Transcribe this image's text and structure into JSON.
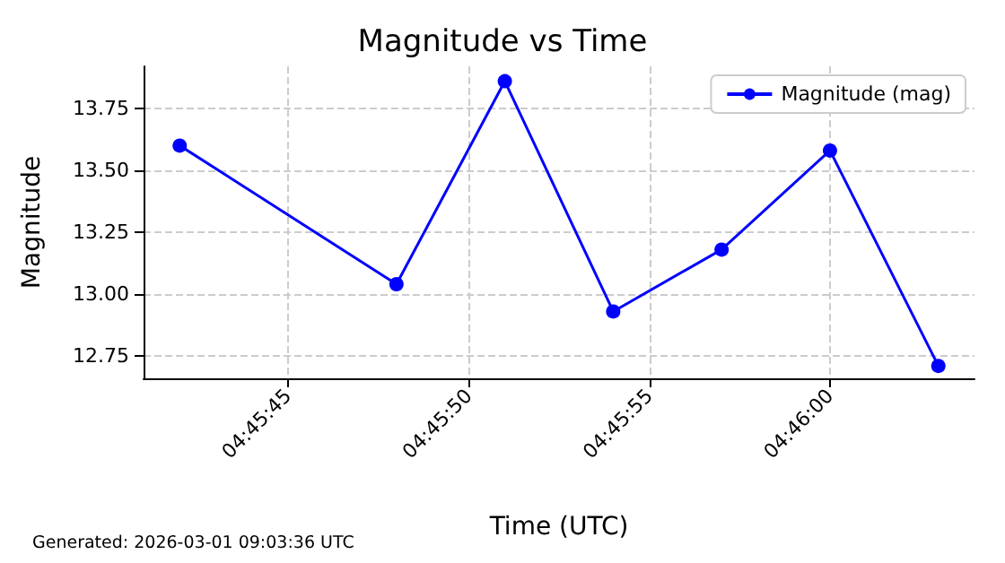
{
  "chart_data": {
    "type": "line",
    "title": "Magnitude vs Time",
    "xlabel": "Time (UTC)",
    "ylabel": "Magnitude",
    "x": [
      4.7616667,
      4.7633333,
      4.7641667,
      4.765,
      4.7658333,
      4.7666667,
      4.7675
    ],
    "series": [
      {
        "name": "Magnitude (mag)",
        "color": "#0000ff",
        "values": [
          13.6,
          13.04,
          13.86,
          12.93,
          13.18,
          13.58,
          12.71
        ]
      }
    ],
    "xlim": [
      4.7613889,
      4.7677778
    ],
    "xticks": [
      {
        "value": 4.7625,
        "label": "04:45:45"
      },
      {
        "value": 4.7638889,
        "label": "04:45:50"
      },
      {
        "value": 4.7652778,
        "label": "04:45:55"
      },
      {
        "value": 4.7666667,
        "label": "04:46:00"
      }
    ],
    "ylim": [
      12.66,
      13.92
    ],
    "yticks": [
      {
        "value": 12.75,
        "label": "12.75"
      },
      {
        "value": 13.0,
        "label": "13.00"
      },
      {
        "value": 13.25,
        "label": "13.25"
      },
      {
        "value": 13.5,
        "label": "13.50"
      },
      {
        "value": 13.75,
        "label": "13.75"
      }
    ],
    "grid": true,
    "legend": "top right",
    "marker": "circle",
    "line_style": "solid",
    "annotations": [
      "Generated: 2026-03-01 09:03:36 UTC"
    ]
  }
}
